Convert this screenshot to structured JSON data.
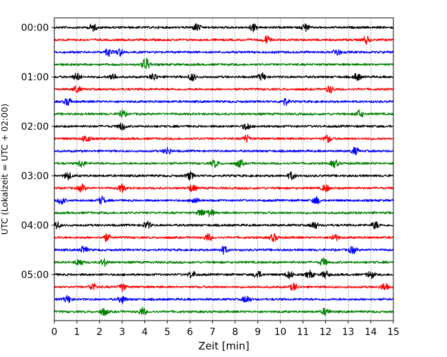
{
  "chart_data": {
    "type": "line",
    "title": "",
    "xlabel": "Zeit  [min]",
    "ylabel": "UTC (Lokalzeit = UTC + 02:00)",
    "xlim": [
      0,
      15
    ],
    "x_ticks": [
      "0",
      "1",
      "2",
      "3",
      "4",
      "5",
      "6",
      "7",
      "8",
      "9",
      "10",
      "11",
      "12",
      "13",
      "14",
      "15"
    ],
    "y_ticks": [
      "00:00",
      "01:00",
      "02:00",
      "03:00",
      "04:00",
      "05:00"
    ],
    "grid": "vertical dotted lines at each minute",
    "trace_interval_minutes": 15,
    "trace_colors": [
      "#000000",
      "#ff0000",
      "#0000ff",
      "#008000"
    ],
    "traces": [
      {
        "start": "00:00",
        "bursts_min": [
          1.7,
          6.3,
          8.8,
          11.1
        ]
      },
      {
        "start": "00:15",
        "bursts_min": [
          9.4,
          13.8
        ]
      },
      {
        "start": "00:30",
        "bursts_min": [
          2.4,
          2.9,
          12.5
        ]
      },
      {
        "start": "00:45",
        "bursts_min": [
          4.0,
          4.1
        ]
      },
      {
        "start": "01:00",
        "bursts_min": [
          1.0,
          2.6,
          4.4,
          6.1,
          9.2,
          13.4
        ]
      },
      {
        "start": "01:15",
        "bursts_min": [
          1.0,
          12.2
        ]
      },
      {
        "start": "01:30",
        "bursts_min": [
          0.6,
          10.2
        ]
      },
      {
        "start": "01:45",
        "bursts_min": [
          3.0,
          13.5
        ]
      },
      {
        "start": "02:00",
        "bursts_min": [
          3.0,
          8.5
        ]
      },
      {
        "start": "02:15",
        "bursts_min": [
          1.4,
          8.5,
          12.1
        ]
      },
      {
        "start": "02:30",
        "bursts_min": [
          5.0,
          13.3
        ]
      },
      {
        "start": "02:45",
        "bursts_min": [
          1.2,
          7.1,
          8.2,
          12.4
        ]
      },
      {
        "start": "03:00",
        "bursts_min": [
          0.6,
          6.0,
          10.5
        ]
      },
      {
        "start": "03:15",
        "bursts_min": [
          1.2,
          3.0,
          6.1,
          12.0
        ]
      },
      {
        "start": "03:30",
        "bursts_min": [
          0.3,
          2.1,
          6.2,
          11.6
        ]
      },
      {
        "start": "03:45",
        "bursts_min": [
          6.5,
          6.9
        ]
      },
      {
        "start": "04:00",
        "bursts_min": [
          0.1,
          4.1,
          11.5,
          14.2
        ]
      },
      {
        "start": "04:15",
        "bursts_min": [
          2.3,
          6.8,
          9.7,
          12.4
        ]
      },
      {
        "start": "04:30",
        "bursts_min": [
          1.3,
          7.5,
          13.2
        ]
      },
      {
        "start": "04:45",
        "bursts_min": [
          1.1,
          2.2,
          11.9
        ]
      },
      {
        "start": "05:00",
        "bursts_min": [
          6.1,
          9.0,
          10.4,
          11.3,
          12.0,
          14.0
        ]
      },
      {
        "start": "05:15",
        "bursts_min": [
          1.7,
          3.0,
          10.6,
          14.6
        ]
      },
      {
        "start": "05:30",
        "bursts_min": [
          0.6,
          3.0,
          8.5
        ]
      },
      {
        "start": "05:45",
        "bursts_min": [
          2.2,
          3.9,
          12.0
        ]
      }
    ]
  }
}
